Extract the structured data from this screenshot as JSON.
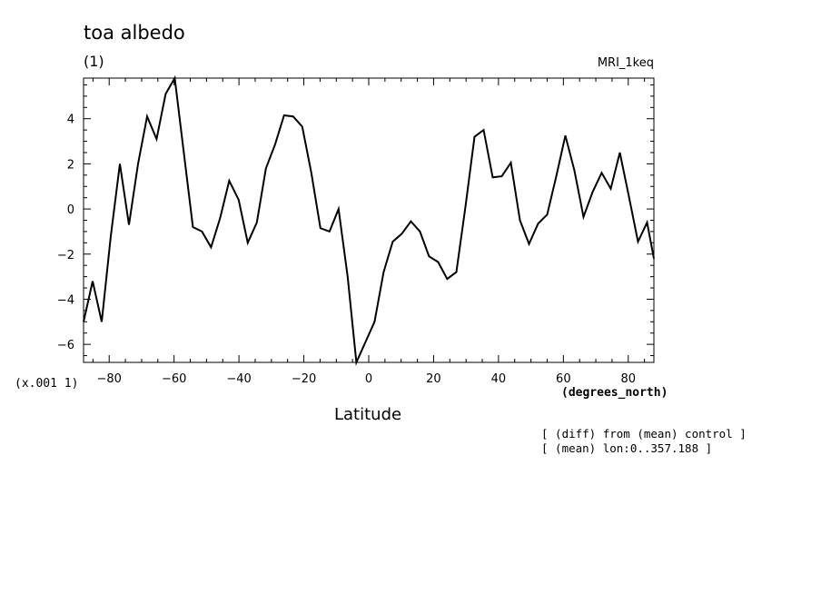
{
  "chart_data": {
    "type": "line",
    "title": "toa albedo",
    "units_label": "(1)",
    "model_label": "MRI_1keq",
    "scale_label": "(x.001 1)",
    "xunits_label": "(degrees_north)",
    "xlabel": "Latitude",
    "notes": [
      "[ (diff) from (mean) control ]",
      "[ (mean) lon:0..357.188 ]"
    ],
    "xlim": [
      -87.9,
      87.9
    ],
    "ylim": [
      -6.8,
      5.8
    ],
    "xticks": [
      -80,
      -60,
      -40,
      -20,
      0,
      20,
      40,
      60,
      80
    ],
    "xtick_labels": [
      "−80",
      "−60",
      "−40",
      "−20",
      "0",
      "20",
      "40",
      "60",
      "80"
    ],
    "yticks": [
      -6,
      -4,
      -2,
      0,
      2,
      4
    ],
    "ytick_labels": [
      "−6",
      "−4",
      "−2",
      "0",
      "2",
      "4"
    ],
    "grid": false,
    "series": [
      {
        "x": [
          -87.9,
          -85.1,
          -82.3,
          -79.5,
          -76.7,
          -73.9,
          -71.1,
          -68.3,
          -65.4,
          -62.6,
          -59.8,
          -57.0,
          -54.2,
          -51.4,
          -48.6,
          -45.8,
          -43.0,
          -40.1,
          -37.3,
          -34.5,
          -31.7,
          -28.9,
          -26.1,
          -23.3,
          -20.5,
          -17.7,
          -14.9,
          -12.1,
          -9.3,
          -6.5,
          -3.8,
          -1.0,
          1.8,
          4.6,
          7.4,
          10.2,
          13.0,
          15.8,
          18.6,
          21.4,
          24.2,
          27.0,
          29.8,
          32.6,
          35.4,
          38.2,
          41.0,
          43.8,
          46.6,
          49.4,
          52.2,
          55.0,
          57.8,
          60.6,
          63.4,
          66.2,
          69.0,
          71.8,
          74.6,
          77.4,
          80.2,
          83.0,
          85.8,
          87.9
        ],
        "y": [
          -5.0,
          -3.2,
          -5.0,
          -1.2,
          2.0,
          -0.7,
          2.0,
          4.1,
          3.1,
          5.1,
          5.8,
          2.5,
          -0.8,
          -1.0,
          -1.7,
          -0.4,
          1.25,
          0.4,
          -1.5,
          -0.6,
          1.8,
          2.85,
          4.15,
          4.1,
          3.65,
          1.6,
          -0.85,
          -1.0,
          0.0,
          -3.0,
          -6.8,
          -5.9,
          -5.0,
          -2.8,
          -1.45,
          -1.1,
          -0.55,
          -1.0,
          -2.1,
          -2.35,
          -3.1,
          -2.8,
          0.1,
          3.2,
          3.5,
          1.4,
          1.45,
          2.05,
          -0.5,
          -1.55,
          -0.65,
          -0.25,
          1.45,
          3.25,
          1.7,
          -0.35,
          0.75,
          1.6,
          0.9,
          2.5,
          0.55,
          -1.45,
          -0.6,
          -2.2
        ]
      }
    ]
  }
}
